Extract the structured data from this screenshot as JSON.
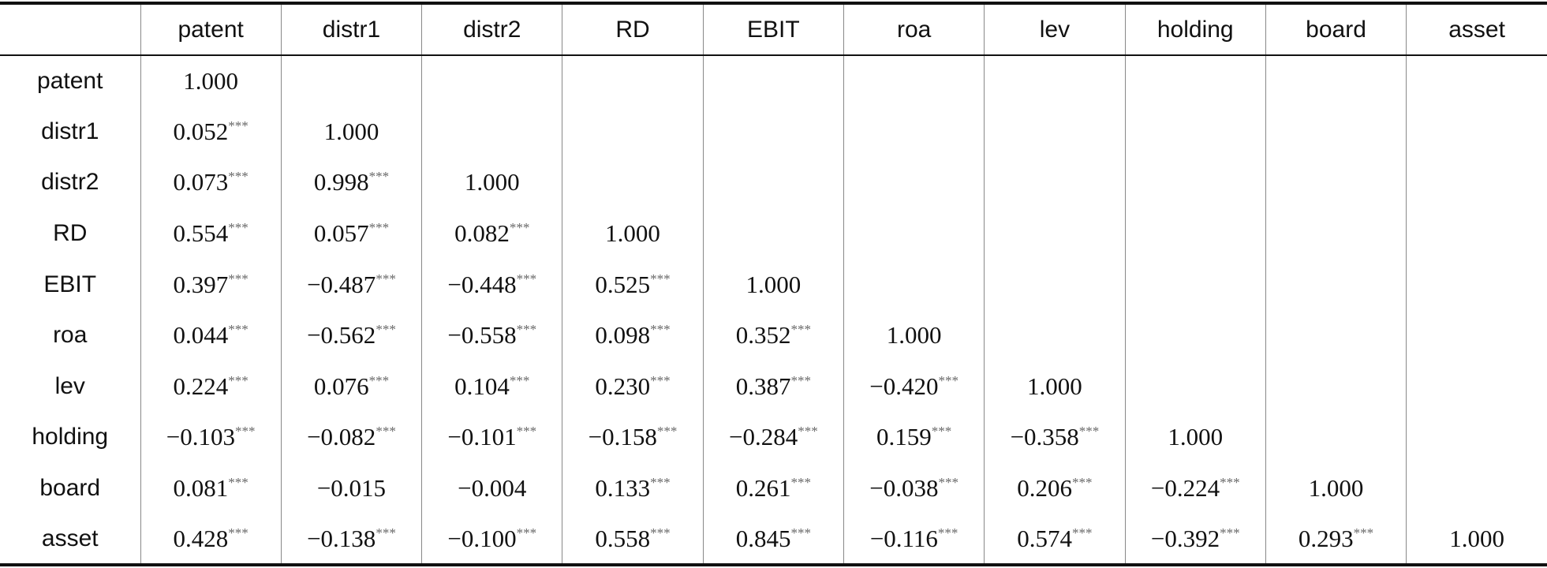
{
  "table": {
    "columns": [
      "patent",
      "distr1",
      "distr2",
      "RD",
      "EBIT",
      "roa",
      "lev",
      "holding",
      "board",
      "asset"
    ],
    "rows": [
      {
        "label": "patent",
        "cells": [
          {
            "value": "1.000"
          }
        ]
      },
      {
        "label": "distr1",
        "cells": [
          {
            "value": "0.052",
            "sig": "***"
          },
          {
            "value": "1.000"
          }
        ]
      },
      {
        "label": "distr2",
        "cells": [
          {
            "value": "0.073",
            "sig": "***"
          },
          {
            "value": "0.998",
            "sig": "***"
          },
          {
            "value": "1.000"
          }
        ]
      },
      {
        "label": "RD",
        "cells": [
          {
            "value": "0.554",
            "sig": "***"
          },
          {
            "value": "0.057",
            "sig": "***"
          },
          {
            "value": "0.082",
            "sig": "***"
          },
          {
            "value": "1.000"
          }
        ]
      },
      {
        "label": "EBIT",
        "cells": [
          {
            "value": "0.397",
            "sig": "***"
          },
          {
            "value": "−0.487",
            "sig": "***"
          },
          {
            "value": "−0.448",
            "sig": "***"
          },
          {
            "value": "0.525",
            "sig": "***"
          },
          {
            "value": "1.000"
          }
        ]
      },
      {
        "label": "roa",
        "cells": [
          {
            "value": "0.044",
            "sig": "***"
          },
          {
            "value": "−0.562",
            "sig": "***"
          },
          {
            "value": "−0.558",
            "sig": "***"
          },
          {
            "value": "0.098",
            "sig": "***"
          },
          {
            "value": "0.352",
            "sig": "***"
          },
          {
            "value": "1.000"
          }
        ]
      },
      {
        "label": "lev",
        "cells": [
          {
            "value": "0.224",
            "sig": "***"
          },
          {
            "value": "0.076",
            "sig": "***"
          },
          {
            "value": "0.104",
            "sig": "***"
          },
          {
            "value": "0.230",
            "sig": "***"
          },
          {
            "value": "0.387",
            "sig": "***"
          },
          {
            "value": "−0.420",
            "sig": "***"
          },
          {
            "value": "1.000"
          }
        ]
      },
      {
        "label": "holding",
        "cells": [
          {
            "value": "−0.103",
            "sig": "***"
          },
          {
            "value": "−0.082",
            "sig": "***"
          },
          {
            "value": "−0.101",
            "sig": "***"
          },
          {
            "value": "−0.158",
            "sig": "***"
          },
          {
            "value": "−0.284",
            "sig": "***"
          },
          {
            "value": "0.159",
            "sig": "***"
          },
          {
            "value": "−0.358",
            "sig": "***"
          },
          {
            "value": "1.000"
          }
        ]
      },
      {
        "label": "board",
        "cells": [
          {
            "value": "0.081",
            "sig": "***"
          },
          {
            "value": "−0.015"
          },
          {
            "value": "−0.004"
          },
          {
            "value": "0.133",
            "sig": "***"
          },
          {
            "value": "0.261",
            "sig": "***"
          },
          {
            "value": "−0.038",
            "sig": "***"
          },
          {
            "value": "0.206",
            "sig": "***"
          },
          {
            "value": "−0.224",
            "sig": "***"
          },
          {
            "value": "1.000"
          }
        ]
      },
      {
        "label": "asset",
        "cells": [
          {
            "value": "0.428",
            "sig": "***"
          },
          {
            "value": "−0.138",
            "sig": "***"
          },
          {
            "value": "−0.100",
            "sig": "***"
          },
          {
            "value": "0.558",
            "sig": "***"
          },
          {
            "value": "0.845",
            "sig": "***"
          },
          {
            "value": "−0.116",
            "sig": "***"
          },
          {
            "value": "0.574",
            "sig": "***"
          },
          {
            "value": "−0.392",
            "sig": "***"
          },
          {
            "value": "0.293",
            "sig": "***"
          },
          {
            "value": "1.000"
          }
        ]
      }
    ]
  }
}
